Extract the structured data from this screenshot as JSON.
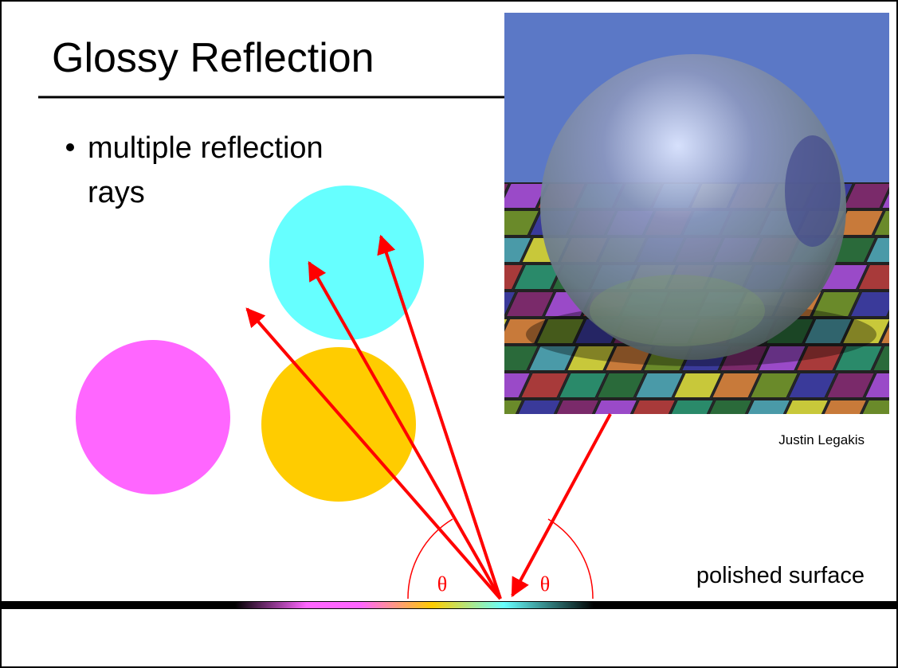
{
  "header": {
    "title": "Glossy Reflection"
  },
  "bullets": [
    "multiple reflection rays"
  ],
  "image": {
    "credit": "Justin Legakis"
  },
  "diagram": {
    "angle_labels": [
      "θ",
      "θ"
    ],
    "surface_label": "polished surface"
  }
}
